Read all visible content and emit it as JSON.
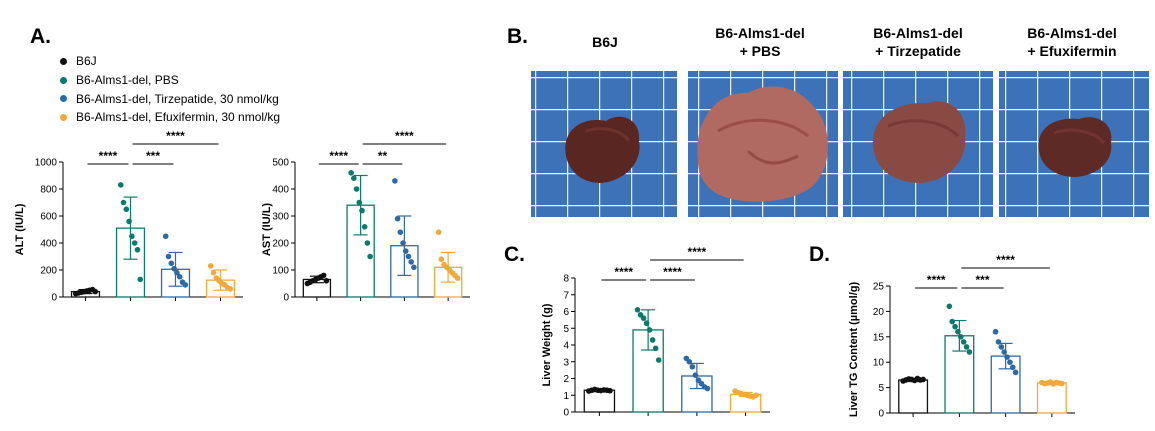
{
  "panels": {
    "a": "A.",
    "b": "B.",
    "c": "C.",
    "d": "D."
  },
  "groups": [
    {
      "label": "B6J",
      "color": "#111111"
    },
    {
      "label": "B6-Alms1-del, PBS",
      "color": "#0b7a6a"
    },
    {
      "label": "B6-Alms1-del, Tirzepatide, 30 nmol/kg",
      "color": "#2c6aa6"
    },
    {
      "label": "B6-Alms1-del, Efuxifermin, 30 nmol/kg",
      "color": "#f2a83a"
    }
  ],
  "photos": {
    "labels": [
      [
        "B6J"
      ],
      [
        "B6-Alms1-del",
        "+ PBS"
      ],
      [
        "B6-Alms1-del",
        "+ Tirzepatide"
      ],
      [
        "B6-Alms1-del",
        "+ Efuxifermin"
      ]
    ]
  },
  "chart_data": [
    {
      "id": "alt",
      "type": "bar",
      "ylabel": "ALT (IU/L)",
      "ylim": [
        0,
        1000
      ],
      "yticks": [
        0,
        200,
        400,
        600,
        800,
        1000
      ],
      "means": [
        40,
        510,
        205,
        125
      ],
      "sd": [
        15,
        230,
        125,
        75
      ],
      "points": [
        [
          25,
          30,
          35,
          40,
          45,
          50,
          55,
          40
        ],
        [
          830,
          700,
          650,
          560,
          450,
          400,
          350,
          130
        ],
        [
          450,
          300,
          250,
          210,
          180,
          150,
          110,
          90
        ],
        [
          230,
          180,
          140,
          120,
          100,
          90,
          70,
          60
        ]
      ],
      "sig": [
        {
          "a": 0,
          "b": 1,
          "label": "****",
          "level": 0
        },
        {
          "a": 1,
          "b": 2,
          "label": "***",
          "level": 0
        },
        {
          "a": 1,
          "b": 3,
          "label": "****",
          "level": 1
        }
      ]
    },
    {
      "id": "ast",
      "type": "bar",
      "ylabel": "AST (IU/L)",
      "ylim": [
        0,
        500
      ],
      "yticks": [
        0,
        100,
        200,
        300,
        400,
        500
      ],
      "means": [
        65,
        340,
        190,
        110
      ],
      "sd": [
        12,
        110,
        110,
        55
      ],
      "points": [
        [
          50,
          55,
          60,
          65,
          70,
          75,
          80,
          60
        ],
        [
          460,
          440,
          400,
          350,
          320,
          260,
          200,
          150
        ],
        [
          430,
          290,
          240,
          200,
          170,
          150,
          130,
          110
        ],
        [
          240,
          140,
          120,
          110,
          100,
          90,
          80,
          70
        ]
      ],
      "sig": [
        {
          "a": 0,
          "b": 1,
          "label": "****",
          "level": 0
        },
        {
          "a": 1,
          "b": 2,
          "label": "**",
          "level": 0
        },
        {
          "a": 1,
          "b": 3,
          "label": "****",
          "level": 1
        }
      ]
    },
    {
      "id": "liver_weight",
      "type": "bar",
      "ylabel": "Liver Weight (g)",
      "ylim": [
        0,
        8
      ],
      "yticks": [
        0,
        1,
        2,
        3,
        4,
        5,
        6,
        7,
        8
      ],
      "means": [
        1.3,
        4.9,
        2.15,
        1.05
      ],
      "sd": [
        0.08,
        1.2,
        0.75,
        0.12
      ],
      "points": [
        [
          1.25,
          1.3,
          1.35,
          1.3,
          1.28,
          1.32,
          1.3,
          1.27
        ],
        [
          6.1,
          5.8,
          5.6,
          5.3,
          4.9,
          4.3,
          3.8,
          3.1
        ],
        [
          3.2,
          3.0,
          2.7,
          2.2,
          1.9,
          1.7,
          1.5,
          1.4
        ],
        [
          1.25,
          1.15,
          1.1,
          1.05,
          1.0,
          0.95,
          0.9,
          1.0
        ]
      ],
      "sig": [
        {
          "a": 0,
          "b": 1,
          "label": "****",
          "level": 0
        },
        {
          "a": 1,
          "b": 2,
          "label": "****",
          "level": 0
        },
        {
          "a": 1,
          "b": 3,
          "label": "****",
          "level": 1
        }
      ]
    },
    {
      "id": "liver_tg",
      "type": "bar",
      "ylabel": "Liver TG Content (µmol/g)",
      "ylim": [
        0,
        25
      ],
      "yticks": [
        0,
        5,
        10,
        15,
        20,
        25
      ],
      "means": [
        6.5,
        15.2,
        11.2,
        5.9
      ],
      "sd": [
        0.3,
        3.0,
        2.5,
        0.3
      ],
      "points": [
        [
          6.3,
          6.5,
          6.7,
          6.6,
          6.4,
          6.8,
          6.5,
          6.6
        ],
        [
          21,
          18,
          17,
          16,
          15,
          14,
          13,
          12
        ],
        [
          16,
          14,
          13,
          12,
          11,
          10,
          9,
          8
        ],
        [
          6.0,
          5.8,
          5.9,
          6.1,
          5.7,
          6.0,
          5.9,
          5.8
        ]
      ],
      "sig": [
        {
          "a": 0,
          "b": 1,
          "label": "****",
          "level": 0
        },
        {
          "a": 1,
          "b": 2,
          "label": "***",
          "level": 0
        },
        {
          "a": 1,
          "b": 3,
          "label": "****",
          "level": 1
        }
      ]
    }
  ]
}
